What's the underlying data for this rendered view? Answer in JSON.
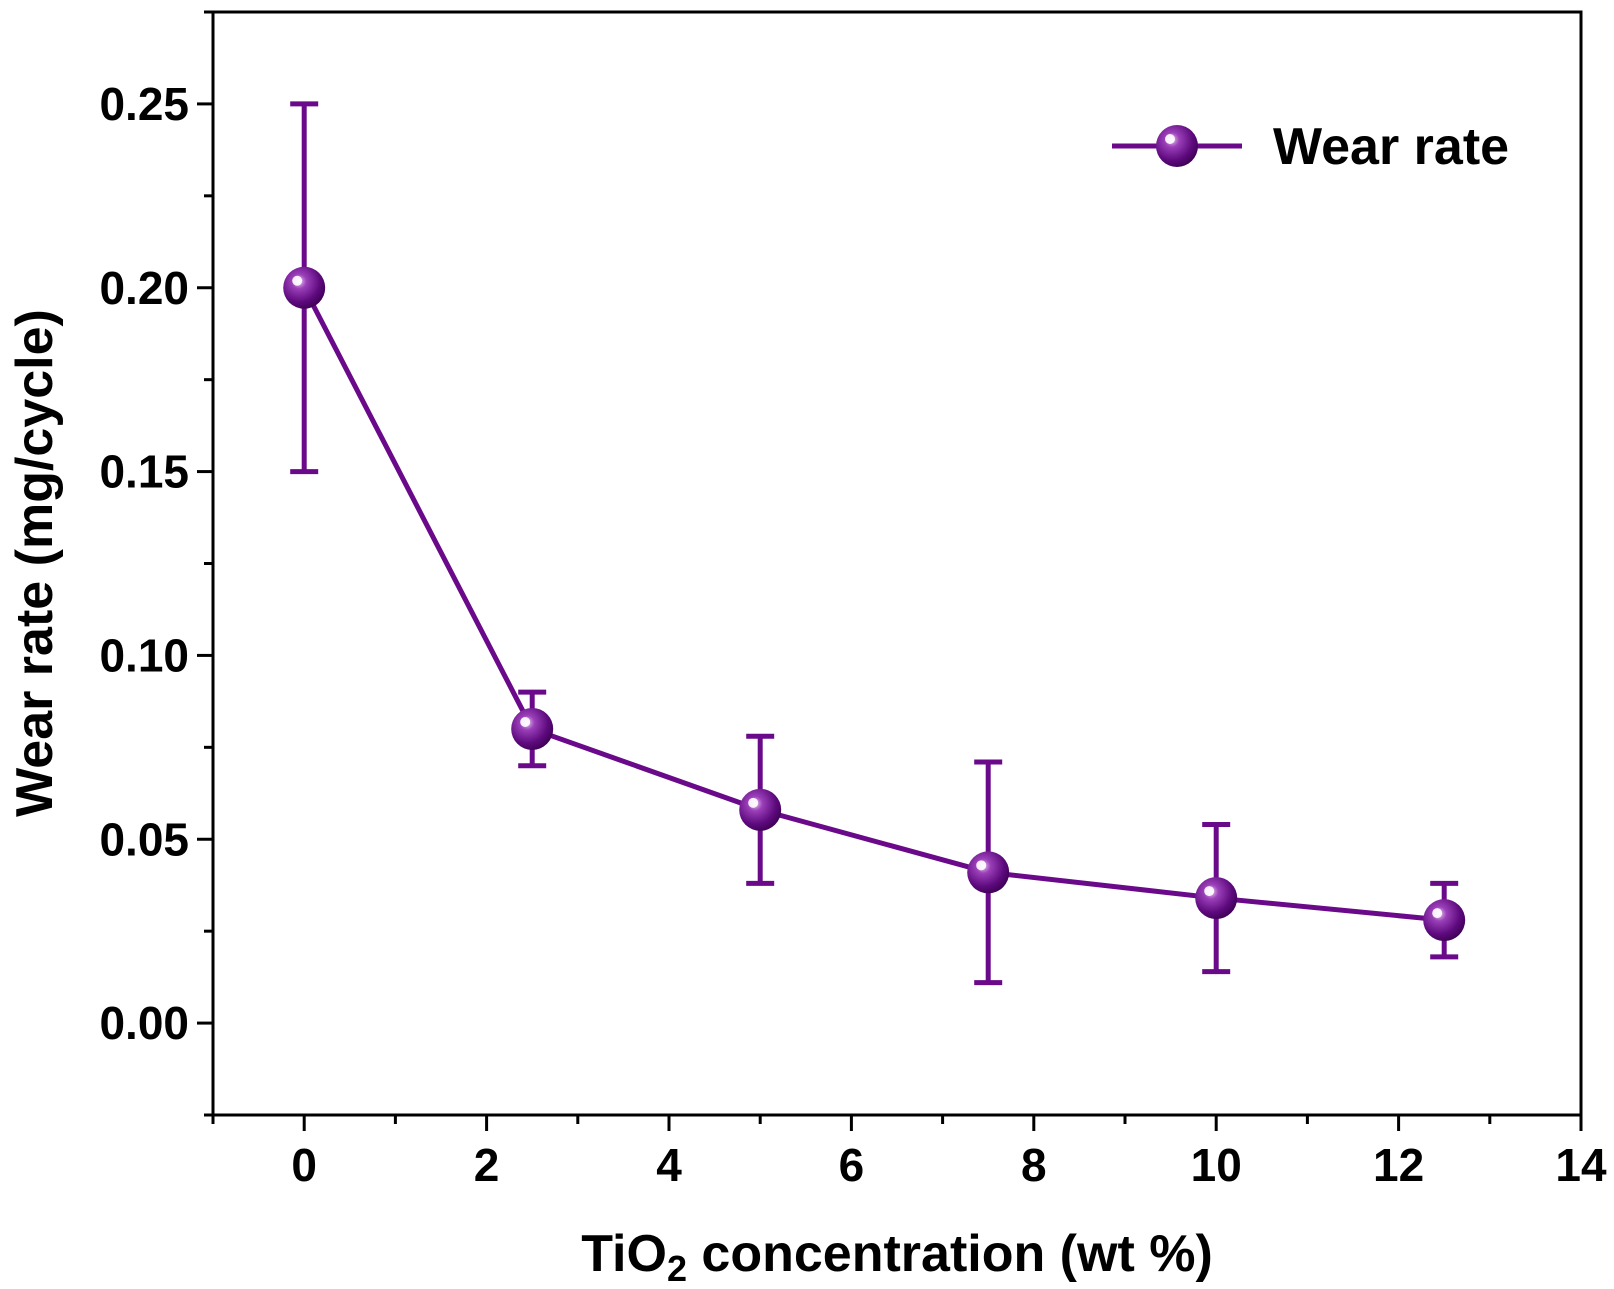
{
  "chart_data": {
    "type": "line",
    "xlabel_main": "TiO",
    "xlabel_sub": "2",
    "xlabel_rest": " concentration (wt %)",
    "ylabel": "Wear rate (mg/cycle)",
    "xlim": [
      -1,
      14
    ],
    "ylim": [
      -0.025,
      0.275
    ],
    "x_ticks": [
      0,
      2,
      4,
      6,
      8,
      10,
      12,
      14
    ],
    "x_tick_labels": [
      "0",
      "2",
      "4",
      "6",
      "8",
      "10",
      "12",
      "14"
    ],
    "y_ticks": [
      0.0,
      0.05,
      0.1,
      0.15,
      0.2,
      0.25
    ],
    "y_tick_labels": [
      "0.00",
      "0.05",
      "0.10",
      "0.15",
      "0.20",
      "0.25"
    ],
    "legend_position": "top-right",
    "grid": false,
    "series": [
      {
        "name": "Wear rate",
        "color": "#6a0a8a",
        "x": [
          0,
          2.5,
          5,
          7.5,
          10,
          12.5
        ],
        "y": [
          0.2,
          0.08,
          0.058,
          0.041,
          0.034,
          0.028
        ],
        "err_upper": [
          0.25,
          0.09,
          0.078,
          0.071,
          0.054,
          0.038
        ],
        "err_lower": [
          0.15,
          0.07,
          0.038,
          0.011,
          0.014,
          0.018
        ]
      }
    ]
  }
}
